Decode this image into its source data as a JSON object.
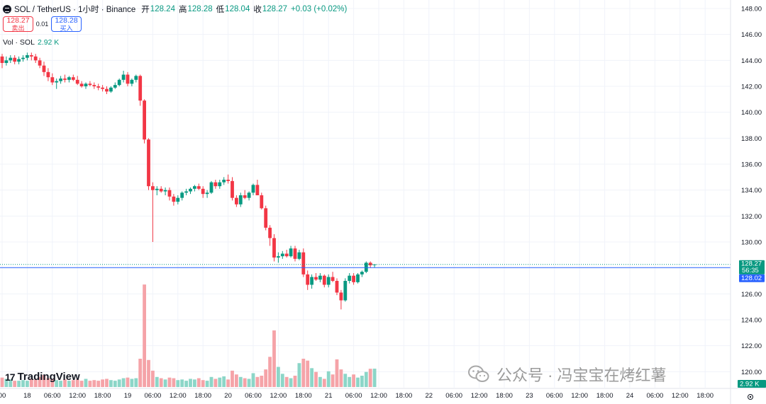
{
  "header": {
    "symbol": "SOL / TetherUS · 1小时 · Binance",
    "open_label": "开",
    "open": "128.24",
    "high_label": "高",
    "high": "128.28",
    "low_label": "低",
    "low": "128.04",
    "close_label": "收",
    "close": "128.27",
    "change": "+0.03 (+0.02%)"
  },
  "trade": {
    "sell_price": "128.27",
    "sell_label": "卖出",
    "spread": "0.01",
    "buy_price": "128.28",
    "buy_label": "买入"
  },
  "volume_legend": {
    "label": "Vol · SOL",
    "value": "2.92 K"
  },
  "branding": {
    "name": "TradingView",
    "mark": "17"
  },
  "watermark": "公众号 · 冯宝宝在烤红薯",
  "colors": {
    "up": "#089981",
    "down": "#f23645",
    "vol_up": "#8cd6c8",
    "vol_down": "#f5a3a8",
    "price_line": "#2962ff"
  },
  "chart_data": {
    "type": "candlestick",
    "interval": "1h",
    "ylim": [
      119.2,
      148.6
    ],
    "y_ticks": [
      "148.00",
      "146.00",
      "144.00",
      "142.00",
      "140.00",
      "138.00",
      "136.00",
      "134.00",
      "132.00",
      "130.00",
      "128.00",
      "126.00",
      "124.00",
      "122.00",
      "120.00"
    ],
    "x_ticks": [
      {
        "label": "00",
        "t": 0
      },
      {
        "label": "18",
        "t": 6
      },
      {
        "label": "06:00",
        "t": 12
      },
      {
        "label": "12:00",
        "t": 18
      },
      {
        "label": "18:00",
        "t": 24
      },
      {
        "label": "19",
        "t": 30
      },
      {
        "label": "06:00",
        "t": 36
      },
      {
        "label": "12:00",
        "t": 42
      },
      {
        "label": "18:00",
        "t": 48
      },
      {
        "label": "20",
        "t": 54
      },
      {
        "label": "06:00",
        "t": 60
      },
      {
        "label": "12:00",
        "t": 66
      },
      {
        "label": "18:00",
        "t": 72
      },
      {
        "label": "21",
        "t": 78
      },
      {
        "label": "06:00",
        "t": 84
      },
      {
        "label": "12:00",
        "t": 90
      },
      {
        "label": "18:00",
        "t": 96
      },
      {
        "label": "22",
        "t": 102
      },
      {
        "label": "06:00",
        "t": 108
      },
      {
        "label": "12:00",
        "t": 114
      },
      {
        "label": "18:00",
        "t": 120
      },
      {
        "label": "23",
        "t": 126
      },
      {
        "label": "06:00",
        "t": 132
      },
      {
        "label": "12:00",
        "t": 138
      },
      {
        "label": "18:00",
        "t": 144
      },
      {
        "label": "24",
        "t": 150
      },
      {
        "label": "06:00",
        "t": 156
      },
      {
        "label": "12:00",
        "t": 162
      },
      {
        "label": "18:00",
        "t": 168
      }
    ],
    "last_price": "128.27",
    "countdown": "56:35",
    "bid_price": "128.02",
    "volume_last": "2.92 K",
    "candles": [
      [
        144.3,
        144.5,
        143.4,
        143.8
      ],
      [
        143.8,
        144.3,
        143.6,
        144.0
      ],
      [
        144.0,
        144.4,
        143.8,
        144.2
      ],
      [
        144.2,
        144.4,
        143.7,
        143.9
      ],
      [
        143.9,
        144.3,
        143.7,
        144.1
      ],
      [
        144.1,
        144.4,
        143.9,
        144.2
      ],
      [
        144.2,
        144.6,
        144.0,
        144.4
      ],
      [
        144.4,
        144.6,
        144.0,
        144.3
      ],
      [
        144.3,
        144.5,
        143.8,
        144.0
      ],
      [
        144.0,
        144.2,
        143.4,
        143.6
      ],
      [
        143.6,
        143.9,
        142.8,
        143.1
      ],
      [
        143.1,
        143.4,
        142.4,
        142.7
      ],
      [
        142.7,
        143.0,
        142.1,
        142.3
      ],
      [
        142.3,
        142.6,
        141.8,
        142.4
      ],
      [
        142.4,
        142.8,
        142.2,
        142.6
      ],
      [
        142.6,
        142.9,
        142.3,
        142.5
      ],
      [
        142.5,
        142.8,
        142.3,
        142.7
      ],
      [
        142.7,
        142.9,
        142.4,
        142.5
      ],
      [
        142.5,
        142.8,
        142.1,
        142.2
      ],
      [
        142.2,
        142.4,
        141.9,
        142.0
      ],
      [
        142.0,
        142.3,
        141.8,
        142.2
      ],
      [
        142.2,
        142.4,
        142.0,
        142.1
      ],
      [
        142.1,
        142.3,
        141.8,
        142.0
      ],
      [
        142.0,
        142.2,
        141.7,
        141.9
      ],
      [
        141.9,
        142.1,
        141.6,
        141.8
      ],
      [
        141.8,
        142.0,
        141.4,
        141.6
      ],
      [
        141.6,
        142.0,
        141.5,
        141.9
      ],
      [
        141.9,
        142.3,
        141.8,
        142.1
      ],
      [
        142.1,
        142.6,
        142.0,
        142.5
      ],
      [
        142.5,
        143.2,
        142.3,
        142.9
      ],
      [
        142.9,
        143.1,
        142.0,
        142.2
      ],
      [
        142.2,
        142.6,
        142.0,
        142.5
      ],
      [
        142.5,
        142.9,
        142.3,
        142.8
      ],
      [
        142.8,
        142.9,
        140.5,
        140.9
      ],
      [
        140.9,
        141.0,
        137.6,
        137.9
      ],
      [
        137.9,
        138.0,
        134.0,
        134.3
      ],
      [
        134.3,
        134.6,
        130.0,
        134.0
      ],
      [
        134.0,
        134.3,
        133.6,
        134.1
      ],
      [
        134.1,
        134.3,
        133.8,
        133.9
      ],
      [
        133.9,
        134.2,
        133.6,
        134.0
      ],
      [
        134.0,
        134.2,
        133.2,
        133.5
      ],
      [
        133.5,
        133.7,
        132.8,
        133.1
      ],
      [
        133.1,
        133.6,
        132.9,
        133.4
      ],
      [
        133.4,
        133.9,
        133.2,
        133.8
      ],
      [
        133.8,
        134.1,
        133.6,
        133.9
      ],
      [
        133.9,
        134.2,
        133.7,
        134.1
      ],
      [
        134.1,
        134.4,
        133.9,
        134.3
      ],
      [
        134.3,
        134.5,
        134.0,
        134.1
      ],
      [
        134.1,
        134.3,
        133.4,
        133.7
      ],
      [
        133.7,
        134.0,
        133.4,
        133.8
      ],
      [
        133.8,
        134.7,
        133.7,
        134.6
      ],
      [
        134.6,
        134.8,
        134.1,
        134.3
      ],
      [
        134.3,
        134.8,
        134.1,
        134.6
      ],
      [
        134.6,
        135.0,
        134.4,
        134.8
      ],
      [
        134.8,
        135.2,
        134.5,
        134.7
      ],
      [
        134.7,
        135.0,
        133.2,
        133.4
      ],
      [
        133.4,
        133.6,
        132.7,
        132.9
      ],
      [
        132.9,
        133.8,
        132.7,
        133.6
      ],
      [
        133.6,
        134.0,
        133.3,
        133.4
      ],
      [
        133.4,
        133.9,
        133.2,
        133.8
      ],
      [
        133.8,
        134.5,
        133.6,
        134.4
      ],
      [
        134.4,
        134.8,
        133.6,
        133.6
      ],
      [
        133.6,
        133.8,
        132.5,
        132.6
      ],
      [
        132.6,
        132.8,
        130.9,
        131.1
      ],
      [
        131.1,
        131.3,
        129.7,
        130.3
      ],
      [
        130.3,
        130.6,
        128.5,
        128.8
      ],
      [
        128.8,
        129.2,
        128.4,
        128.9
      ],
      [
        128.9,
        129.3,
        128.7,
        129.1
      ],
      [
        129.1,
        129.4,
        128.8,
        128.9
      ],
      [
        128.9,
        129.7,
        128.8,
        129.5
      ],
      [
        129.5,
        129.7,
        128.5,
        128.7
      ],
      [
        128.7,
        129.4,
        128.6,
        129.2
      ],
      [
        129.2,
        129.5,
        127.3,
        127.5
      ],
      [
        127.5,
        127.8,
        126.3,
        126.7
      ],
      [
        126.7,
        127.5,
        126.4,
        127.3
      ],
      [
        127.3,
        127.6,
        127.0,
        127.1
      ],
      [
        127.1,
        127.6,
        126.9,
        127.4
      ],
      [
        127.4,
        127.5,
        126.5,
        126.7
      ],
      [
        126.7,
        127.5,
        126.5,
        127.3
      ],
      [
        127.3,
        127.7,
        126.9,
        127.0
      ],
      [
        127.0,
        127.2,
        125.9,
        126.1
      ],
      [
        126.1,
        126.3,
        124.8,
        125.5
      ],
      [
        125.5,
        127.2,
        125.4,
        127.0
      ],
      [
        127.0,
        127.6,
        126.8,
        127.4
      ],
      [
        127.4,
        127.6,
        126.7,
        126.9
      ],
      [
        126.9,
        127.6,
        126.8,
        127.5
      ],
      [
        127.5,
        127.8,
        127.3,
        127.7
      ],
      [
        127.7,
        128.5,
        127.6,
        128.4
      ],
      [
        128.4,
        128.5,
        128.0,
        128.2
      ],
      [
        128.24,
        128.28,
        128.04,
        128.27
      ]
    ],
    "volume": [
      1.5,
      1.3,
      1.2,
      1.0,
      1.0,
      1.1,
      1.0,
      1.3,
      1.2,
      1.6,
      1.9,
      1.4,
      1.3,
      1.1,
      1.0,
      1.2,
      1.0,
      1.1,
      1.2,
      1.0,
      1.3,
      1.0,
      1.1,
      1.0,
      1.2,
      1.3,
      1.1,
      1.0,
      1.2,
      1.4,
      1.5,
      1.3,
      1.4,
      4.5,
      16.3,
      4.3,
      2.6,
      1.6,
      1.4,
      1.2,
      1.5,
      1.4,
      1.1,
      1.2,
      1.0,
      1.3,
      1.2,
      1.4,
      1.1,
      1.0,
      1.6,
      1.3,
      1.5,
      1.7,
      1.2,
      2.6,
      2.0,
      1.6,
      1.4,
      1.3,
      2.2,
      1.6,
      1.8,
      2.8,
      4.8,
      9.0,
      3.2,
      2.1,
      1.6,
      1.4,
      1.8,
      3.8,
      4.5,
      4.2,
      3.0,
      2.4,
      1.6,
      1.3,
      2.5,
      2.0,
      4.4,
      2.8,
      2.1,
      1.6,
      2.0,
      1.5,
      1.8,
      2.4,
      2.9,
      2.92
    ],
    "vol_max": 18.0
  }
}
